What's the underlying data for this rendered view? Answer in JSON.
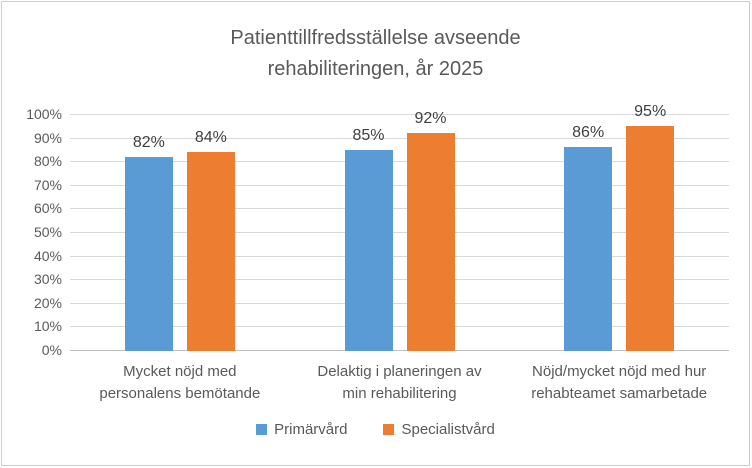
{
  "chart_data": {
    "type": "bar",
    "title": "Patienttillfredsställelse avseende\nrehabiliteringen, år 2025",
    "categories": [
      "Mycket nöjd med\npersonalens bemötande",
      "Delaktig i planeringen av\nmin rehabilitering",
      "Nöjd/mycket nöjd med hur\nrehabteamet samarbetade"
    ],
    "series": [
      {
        "name": "Primärvård",
        "color": "#5B9BD5",
        "values": [
          82,
          85,
          86
        ],
        "labels": [
          "82%",
          "85%",
          "86%"
        ]
      },
      {
        "name": "Specialistvård",
        "color": "#ED7D31",
        "values": [
          84,
          92,
          95
        ],
        "labels": [
          "84%",
          "92%",
          "95%"
        ]
      }
    ],
    "ylim": [
      0,
      100
    ],
    "ytick_step": 10,
    "ytick_labels": [
      "0%",
      "10%",
      "20%",
      "30%",
      "40%",
      "50%",
      "60%",
      "70%",
      "80%",
      "90%",
      "100%"
    ],
    "grid": true,
    "legend_position": "bottom",
    "colors": {
      "background": "#FFFFFF",
      "border": "#CFCECD",
      "gridline": "#D9D9D9",
      "axis_line": "#BFBFBF",
      "text": "#595959",
      "data_label": "#404040"
    }
  }
}
